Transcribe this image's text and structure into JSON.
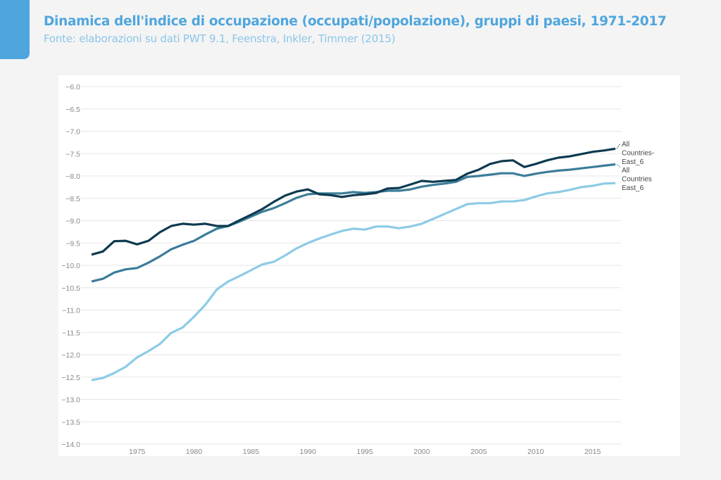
{
  "header": {
    "title": "Dinamica dell'indice di occupazione (occupati/popolazione), gruppi di paesi, 1971-2017",
    "subtitle": "Fonte: elaborazioni su dati PWT 9.1, Feenstra, Inkler, Timmer (2015)"
  },
  "chart_data": {
    "type": "line",
    "title": "Dinamica dell'indice di occupazione (occupati/popolazione), gruppi di paesi, 1971-2017",
    "xlabel": "",
    "ylabel": "",
    "xlim": [
      1971,
      2017
    ],
    "ylim": [
      -14.0,
      -6.0
    ],
    "yticks": [
      -6.0,
      -6.5,
      -7.0,
      -7.5,
      -8.0,
      -8.5,
      -9.0,
      -9.5,
      -10.0,
      -10.5,
      -11.0,
      -11.5,
      -12.0,
      -12.5,
      -13.0,
      -13.5,
      -14.0
    ],
    "xticks": [
      1975,
      1980,
      1985,
      1990,
      1995,
      2000,
      2005,
      2010,
      2015
    ],
    "grid": true,
    "x_start": 1971,
    "series": [
      {
        "name": "All Countries-East_6",
        "label_lines": [
          "All",
          "Countries-",
          "East_6"
        ],
        "color": "#0e3a50",
        "values": [
          -9.76,
          -9.69,
          -9.46,
          -9.45,
          -9.53,
          -9.45,
          -9.26,
          -9.12,
          -9.07,
          -9.09,
          -9.07,
          -9.12,
          -9.12,
          -8.99,
          -8.87,
          -8.74,
          -8.58,
          -8.44,
          -8.35,
          -8.3,
          -8.41,
          -8.43,
          -8.47,
          -8.43,
          -8.41,
          -8.38,
          -8.28,
          -8.27,
          -8.19,
          -8.11,
          -8.13,
          -8.11,
          -8.09,
          -7.95,
          -7.86,
          -7.73,
          -7.67,
          -7.65,
          -7.8,
          -7.73,
          -7.65,
          -7.59,
          -7.56,
          -7.51,
          -7.46,
          -7.43,
          -7.39
        ]
      },
      {
        "name": "All Countries",
        "label_lines": [
          "All",
          "Countries"
        ],
        "color": "#3b7d99",
        "values": [
          -10.36,
          -10.3,
          -10.16,
          -10.09,
          -10.06,
          -9.94,
          -9.8,
          -9.64,
          -9.54,
          -9.45,
          -9.31,
          -9.18,
          -9.12,
          -9.02,
          -8.91,
          -8.8,
          -8.72,
          -8.61,
          -8.49,
          -8.41,
          -8.39,
          -8.39,
          -8.39,
          -8.36,
          -8.38,
          -8.36,
          -8.33,
          -8.33,
          -8.3,
          -8.24,
          -8.2,
          -8.17,
          -8.13,
          -8.02,
          -8.0,
          -7.97,
          -7.94,
          -7.94,
          -8.0,
          -7.95,
          -7.91,
          -7.88,
          -7.86,
          -7.83,
          -7.8,
          -7.77,
          -7.74
        ]
      },
      {
        "name": "East_6",
        "label_lines": [
          "East_6"
        ],
        "color": "#8dcbe6",
        "values": [
          -12.57,
          -12.52,
          -12.41,
          -12.27,
          -12.06,
          -11.92,
          -11.76,
          -11.51,
          -11.39,
          -11.15,
          -10.88,
          -10.54,
          -10.36,
          -10.24,
          -10.11,
          -9.98,
          -9.92,
          -9.78,
          -9.62,
          -9.5,
          -9.4,
          -9.31,
          -9.23,
          -9.18,
          -9.2,
          -9.13,
          -9.13,
          -9.17,
          -9.13,
          -9.07,
          -8.96,
          -8.85,
          -8.74,
          -8.63,
          -8.61,
          -8.61,
          -8.57,
          -8.57,
          -8.54,
          -8.46,
          -8.39,
          -8.36,
          -8.31,
          -8.25,
          -8.22,
          -8.17,
          -8.16
        ]
      }
    ]
  }
}
